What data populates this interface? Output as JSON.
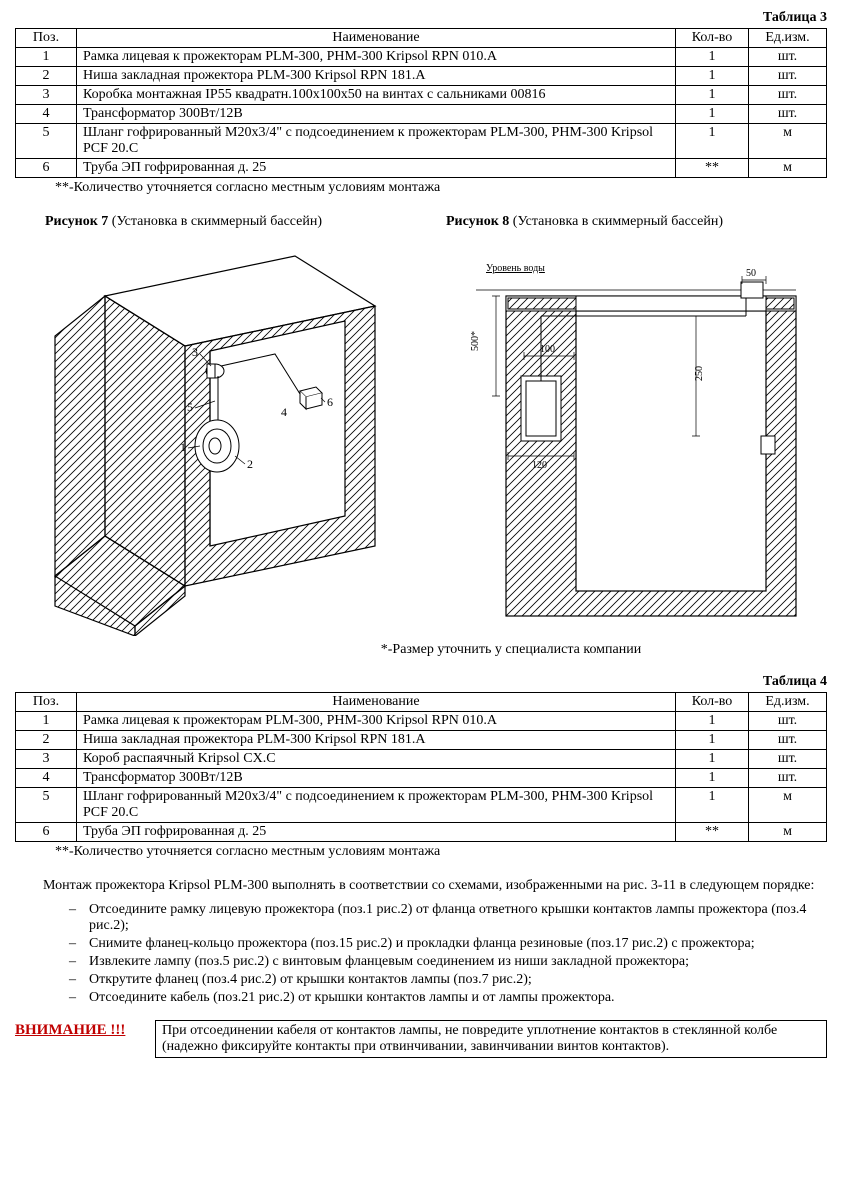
{
  "table3": {
    "title": "Таблица 3",
    "columns": [
      "Поз.",
      "Наименование",
      "Кол-во",
      "Ед.изм."
    ],
    "rows": [
      [
        "1",
        "Рамка лицевая к прожекторам PLM-300, PHM-300 Kripsol RPN 010.A",
        "1",
        "шт."
      ],
      [
        "2",
        "Ниша закладная прожектора PLM-300 Kripsol RPN 181.A",
        "1",
        "шт."
      ],
      [
        "3",
        "Коробка монтажная IP55 квадратн.100х100х50 на винтах с сальниками 00816",
        "1",
        "шт."
      ],
      [
        "4",
        "Трансформатор 300Вт/12В",
        "1",
        "шт."
      ],
      [
        "5",
        "Шланг гофрированный М20х3/4\" с подсоединением к прожекторам PLM-300, PHM-300  Kripsol PCF 20.C",
        "1",
        "м"
      ],
      [
        "6",
        "Труба ЭП гофрированная д. 25",
        "**",
        "м"
      ]
    ],
    "footnote": "**-Количество уточняется согласно местным условиям монтажа"
  },
  "fig7": {
    "label": "Рисунок 7",
    "desc": "(Установка в скиммерный бассейн)"
  },
  "fig8": {
    "label": "Рисунок 8",
    "desc": "(Установка в скиммерный бассейн)"
  },
  "fig8_labels": {
    "water": "Уровень воды",
    "d500": "500*",
    "d100": "100",
    "d50": "50",
    "d120": "120",
    "d250": "250"
  },
  "note_center": "*-Размер уточнить у специалиста компании",
  "table4": {
    "title": "Таблица 4",
    "columns": [
      "Поз.",
      "Наименование",
      "Кол-во",
      "Ед.изм."
    ],
    "rows": [
      [
        "1",
        "Рамка лицевая к прожекторам PLM-300, PHM-300 Kripsol RPN 010.A",
        "1",
        "шт."
      ],
      [
        "2",
        "Ниша закладная прожектора PLM-300 Kripsol RPN 181.A",
        "1",
        "шт."
      ],
      [
        "3",
        "Короб распаячный Kripsol CX.C",
        "1",
        "шт."
      ],
      [
        "4",
        "Трансформатор 300Вт/12В",
        "1",
        "шт."
      ],
      [
        "5",
        "Шланг гофрированный М20х3/4\" с подсоединением к прожекторам PLM-300, PHM-300  Kripsol PCF 20.C",
        "1",
        "м"
      ],
      [
        "6",
        "Труба ЭП гофрированная д. 25",
        "**",
        "м"
      ]
    ],
    "footnote": "**-Количество уточняется согласно местным условиям монтажа"
  },
  "paragraph": "Монтаж прожектора Kripsol PLM-300 выполнять в соответствии со схемами, изображенными на рис. 3-11 в следующем порядке:",
  "bullets": [
    "Отсоедините рамку лицевую прожектора (поз.1 рис.2) от фланца ответного крышки контактов лампы прожектора (поз.4 рис.2);",
    "Снимите фланец-кольцо прожектора (поз.15 рис.2) и прокладки фланца резиновые (поз.17 рис.2) с прожектора;",
    "Извлеките лампу (поз.5 рис.2) с винтовым фланцевым соединением из ниши закладной прожектора;",
    "Открутите фланец (поз.4 рис.2) от крышки контактов лампы (поз.7 рис.2);",
    "Отсоедините кабель (поз.21 рис.2) от крышки контактов лампы и от лампы прожектора."
  ],
  "warning": {
    "label": "ВНИМАНИЕ !!!",
    "text": "При отсоединении кабеля от контактов лампы, не повредите уплотнение контактов в стеклянной колбе (надежно фиксируйте контакты при отвинчивании, завинчивании винтов контактов)."
  },
  "colors": {
    "border": "#000000",
    "hatch": "#000000",
    "warn": "#c00000",
    "bg": "#ffffff"
  }
}
